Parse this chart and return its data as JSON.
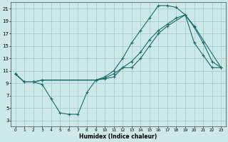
{
  "xlabel": "Humidex (Indice chaleur)",
  "bg_color": "#cce8e8",
  "grid_color": "#aacccc",
  "line_color": "#1a6b6b",
  "xlim": [
    -0.5,
    23.5
  ],
  "ylim": [
    2,
    22
  ],
  "yticks": [
    3,
    5,
    7,
    9,
    11,
    13,
    15,
    17,
    19,
    21
  ],
  "xticks": [
    0,
    1,
    2,
    3,
    4,
    5,
    6,
    7,
    8,
    9,
    10,
    11,
    12,
    13,
    14,
    15,
    16,
    17,
    18,
    19,
    20,
    21,
    22,
    23
  ],
  "line1_x": [
    0,
    1,
    2,
    3,
    9,
    10,
    11,
    12,
    13,
    14,
    15,
    16,
    17,
    18,
    19,
    20,
    23
  ],
  "line1_y": [
    10.5,
    9.2,
    9.2,
    9.5,
    9.5,
    10.0,
    11.0,
    13.0,
    15.5,
    17.5,
    19.5,
    21.5,
    21.5,
    21.2,
    20.0,
    18.2,
    11.5
  ],
  "line2_x": [
    0,
    1,
    2,
    3,
    4,
    5,
    6,
    7,
    8,
    9,
    10,
    11,
    12,
    13,
    14,
    15,
    16,
    17,
    19,
    20,
    21,
    22,
    23
  ],
  "line2_y": [
    10.5,
    9.2,
    9.2,
    8.8,
    6.5,
    4.2,
    4.0,
    4.0,
    7.5,
    9.5,
    9.7,
    10.0,
    11.5,
    11.5,
    13.0,
    15.0,
    17.0,
    18.2,
    20.0,
    15.5,
    13.5,
    11.5,
    11.5
  ],
  "line3_x": [
    0,
    1,
    2,
    3,
    9,
    10,
    11,
    12,
    13,
    14,
    15,
    16,
    17,
    18,
    19,
    20,
    21,
    22,
    23
  ],
  "line3_y": [
    10.5,
    9.2,
    9.2,
    9.5,
    9.5,
    9.8,
    10.5,
    11.5,
    12.5,
    14.0,
    16.0,
    17.5,
    18.5,
    19.5,
    20.0,
    18.0,
    15.5,
    12.5,
    11.5
  ]
}
